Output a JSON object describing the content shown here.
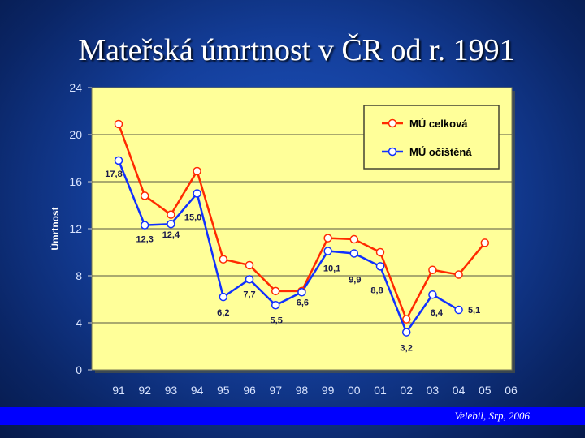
{
  "slide": {
    "title": "Mateřská úmrtnost v ČR od r. 1991",
    "footer": "Velebil, Srp, 2006"
  },
  "colors": {
    "plot_bg": "#ffff99",
    "celkova": "#ff2a00",
    "ocistena": "#1030ff",
    "axis_text": "#d9e4ff"
  },
  "chart_data": {
    "type": "line",
    "ylabel": "Úmrtnost",
    "xlabel": "",
    "ylim": [
      0,
      24
    ],
    "yticks": [
      0,
      4,
      8,
      12,
      16,
      20,
      24
    ],
    "grid": "horizontal",
    "legend_position": "top-right",
    "categories": [
      "91",
      "92",
      "93",
      "94",
      "95",
      "96",
      "97",
      "98",
      "99",
      "00",
      "01",
      "02",
      "03",
      "04",
      "05",
      "06"
    ],
    "series": [
      {
        "name": "MÚ celková",
        "values": [
          20.9,
          14.8,
          13.2,
          16.9,
          9.4,
          8.9,
          6.7,
          6.7,
          11.2,
          11.1,
          10.0,
          4.3,
          8.5,
          8.1,
          10.8,
          null
        ]
      },
      {
        "name": "MÚ očištěná",
        "values": [
          17.8,
          12.3,
          12.4,
          15.0,
          6.2,
          7.7,
          5.5,
          6.6,
          10.1,
          9.9,
          8.8,
          3.2,
          6.4,
          5.1,
          null,
          null
        ],
        "labels": [
          "17,8",
          "12,3",
          "12,4",
          "15,0",
          "6,2",
          "7,7",
          "5,5",
          "6,6",
          "10,1",
          "9,9",
          "8,8",
          "3,2",
          "6,4",
          "5,1",
          null,
          null
        ]
      }
    ]
  }
}
